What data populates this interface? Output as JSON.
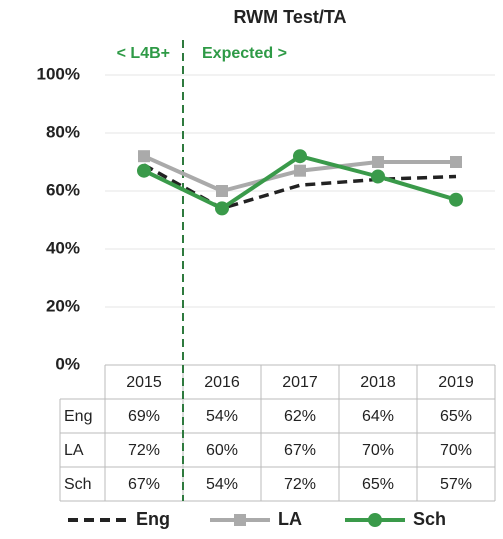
{
  "chart_data": {
    "type": "line",
    "title": "RWM Test/TA",
    "annotations": [
      "< L4B+",
      "Expected >"
    ],
    "categories": [
      "2015",
      "2016",
      "2017",
      "2018",
      "2019"
    ],
    "series": [
      {
        "name": "Eng",
        "color": "#222222",
        "dash": true,
        "marker": "none",
        "values": [
          69,
          54,
          62,
          64,
          65
        ],
        "value_labels": [
          "69%",
          "54%",
          "62%",
          "64%",
          "65%"
        ]
      },
      {
        "name": "LA",
        "color": "#aaaaaa",
        "marker": "square",
        "values": [
          72,
          60,
          67,
          70,
          70
        ],
        "value_labels": [
          "72%",
          "60%",
          "67%",
          "70%",
          "70%"
        ]
      },
      {
        "name": "Sch",
        "color": "#3a9a4a",
        "marker": "circle",
        "values": [
          67,
          54,
          72,
          65,
          57
        ],
        "value_labels": [
          "67%",
          "54%",
          "72%",
          "65%",
          "57%"
        ]
      }
    ],
    "ylim": [
      0,
      100
    ],
    "yticks": [
      {
        "value": 0,
        "label": "0%"
      },
      {
        "value": 20,
        "label": "20%"
      },
      {
        "value": 40,
        "label": "40%"
      },
      {
        "value": 60,
        "label": "60%"
      },
      {
        "value": 80,
        "label": "80%"
      },
      {
        "value": 100,
        "label": "100%"
      }
    ],
    "grid": true
  }
}
